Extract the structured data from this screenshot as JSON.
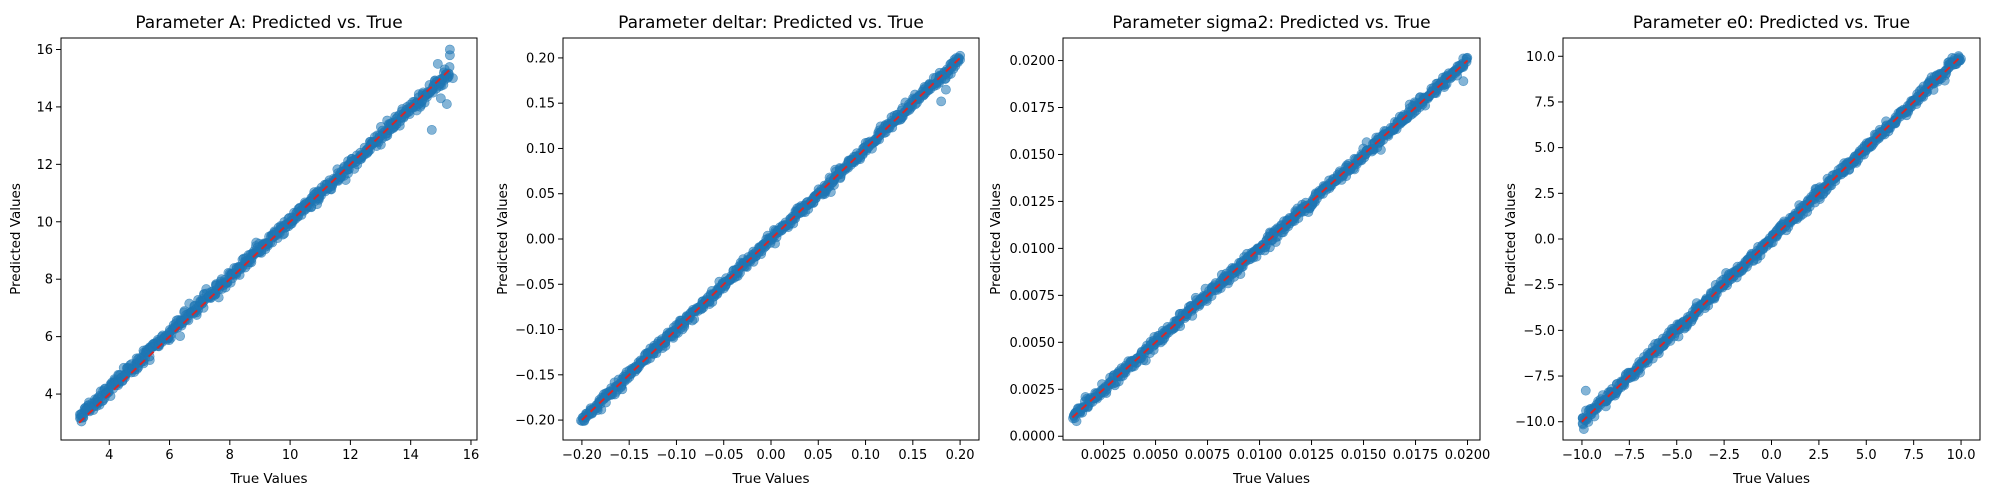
{
  "colors": {
    "point_fill": "#1f77b4",
    "ideal_line": "#d62728"
  },
  "chart_data": [
    {
      "type": "scatter",
      "title": "Parameter A: Predicted vs. True",
      "xlabel": "True Values",
      "ylabel": "Predicted Values",
      "xlim": [
        2.4,
        16.2
      ],
      "ylim": [
        2.4,
        16.4
      ],
      "xticks": [
        4,
        6,
        8,
        10,
        12,
        14,
        16
      ],
      "xtick_labels": [
        "4",
        "6",
        "8",
        "10",
        "12",
        "14",
        "16"
      ],
      "yticks": [
        4,
        6,
        8,
        10,
        12,
        14,
        16
      ],
      "ytick_labels": [
        "4",
        "6",
        "8",
        "10",
        "12",
        "14",
        "16"
      ],
      "true_range": [
        3.0,
        15.3
      ],
      "pred_range": [
        3.2,
        15.2
      ],
      "band_noise": 0.12,
      "outliers": [
        [
          14.9,
          15.5
        ],
        [
          15.1,
          15.2
        ],
        [
          15.3,
          15.8
        ],
        [
          14.7,
          13.2
        ],
        [
          15.0,
          14.3
        ],
        [
          15.2,
          14.1
        ],
        [
          15.4,
          15.0
        ],
        [
          14.8,
          14.9
        ],
        [
          15.3,
          16.0
        ]
      ],
      "grid": false,
      "legend": "none"
    },
    {
      "type": "scatter",
      "title": "Parameter deltar: Predicted vs. True",
      "xlabel": "True Values",
      "ylabel": "Predicted Values",
      "xlim": [
        -0.22,
        0.22
      ],
      "ylim": [
        -0.222,
        0.222
      ],
      "xticks": [
        -0.2,
        -0.15,
        -0.1,
        -0.05,
        0.0,
        0.05,
        0.1,
        0.15,
        0.2
      ],
      "xtick_labels": [
        "−0.20",
        "−0.15",
        "−0.10",
        "−0.05",
        "0.00",
        "0.05",
        "0.10",
        "0.15",
        "0.20"
      ],
      "yticks": [
        -0.2,
        -0.15,
        -0.1,
        -0.05,
        0.0,
        0.05,
        0.1,
        0.15,
        0.2
      ],
      "ytick_labels": [
        "−0.20",
        "−0.15",
        "−0.10",
        "−0.05",
        "0.00",
        "0.05",
        "0.10",
        "0.15",
        "0.20"
      ],
      "true_range": [
        -0.2,
        0.2
      ],
      "pred_range": [
        -0.2,
        0.2
      ],
      "band_noise": 0.003,
      "outliers": [
        [
          0.18,
          0.152
        ],
        [
          0.185,
          0.165
        ],
        [
          0.175,
          0.17
        ]
      ],
      "grid": false,
      "legend": "none"
    },
    {
      "type": "scatter",
      "title": "Parameter sigma2: Predicted vs. True",
      "xlabel": "True Values",
      "ylabel": "Predicted Values",
      "xlim": [
        0.00055,
        0.0206
      ],
      "ylim": [
        -0.0002,
        0.0212
      ],
      "xticks": [
        0.0025,
        0.005,
        0.0075,
        0.01,
        0.0125,
        0.015,
        0.0175,
        0.02
      ],
      "xtick_labels": [
        "0.0025",
        "0.0050",
        "0.0075",
        "0.0100",
        "0.0125",
        "0.0150",
        "0.0175",
        "0.0200"
      ],
      "yticks": [
        0.0,
        0.0025,
        0.005,
        0.0075,
        0.01,
        0.0125,
        0.015,
        0.0175,
        0.02
      ],
      "ytick_labels": [
        "0.0000",
        "0.0025",
        "0.0050",
        "0.0075",
        "0.0100",
        "0.0125",
        "0.0150",
        "0.0175",
        "0.0200"
      ],
      "true_range": [
        0.001,
        0.02
      ],
      "pred_range": [
        0.001,
        0.02
      ],
      "band_noise": 0.00015,
      "outliers": [
        [
          0.0012,
          0.0008
        ],
        [
          0.0198,
          0.0189
        ],
        [
          0.0195,
          0.0192
        ]
      ],
      "grid": false,
      "legend": "none"
    },
    {
      "type": "scatter",
      "title": "Parameter e0: Predicted vs. True",
      "xlabel": "True Values",
      "ylabel": "Predicted Values",
      "xlim": [
        -11.0,
        11.0
      ],
      "ylim": [
        -11.0,
        11.0
      ],
      "xticks": [
        -10.0,
        -7.5,
        -5.0,
        -2.5,
        0.0,
        2.5,
        5.0,
        7.5,
        10.0
      ],
      "xtick_labels": [
        "−10.0",
        "−7.5",
        "−5.0",
        "−2.5",
        "0.0",
        "2.5",
        "5.0",
        "7.5",
        "10.0"
      ],
      "yticks": [
        -10.0,
        -7.5,
        -5.0,
        -2.5,
        0.0,
        2.5,
        5.0,
        7.5,
        10.0
      ],
      "ytick_labels": [
        "−10.0",
        "−7.5",
        "−5.0",
        "−2.5",
        "0.0",
        "2.5",
        "5.0",
        "7.5",
        "10.0"
      ],
      "true_range": [
        -10.0,
        10.0
      ],
      "pred_range": [
        -10.0,
        10.0
      ],
      "band_noise": 0.15,
      "outliers": [
        [
          -9.8,
          -8.3
        ],
        [
          -9.9,
          -10.4
        ]
      ],
      "grid": false,
      "legend": "none"
    }
  ]
}
